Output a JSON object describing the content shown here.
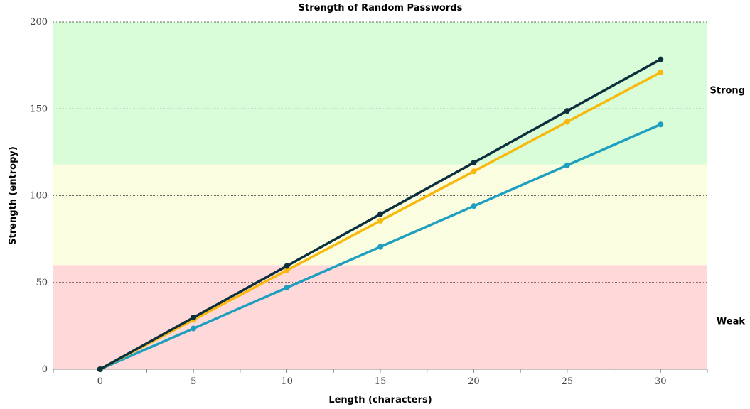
{
  "chart_data": {
    "type": "line",
    "title": "Strength of Random Passwords",
    "xlabel": "Length (characters)",
    "ylabel": "Strength (entropy)",
    "xlim": [
      -2.5,
      32.5
    ],
    "ylim": [
      0,
      200
    ],
    "x_ticks": [
      0,
      5,
      10,
      15,
      20,
      25,
      30
    ],
    "y_ticks": [
      0,
      50,
      100,
      150,
      200
    ],
    "grid": "horizontal-dotted",
    "bands": [
      {
        "from": 0,
        "to": 60,
        "color": "#ffd9d9"
      },
      {
        "from": 60,
        "to": 118,
        "color": "#fafde0"
      },
      {
        "from": 118,
        "to": 200,
        "color": "#d9fdd9"
      }
    ],
    "zone_labels": [
      {
        "label": "Strong",
        "y": 161
      },
      {
        "label": "Weak",
        "y": 28
      }
    ],
    "x": [
      0,
      5,
      10,
      15,
      20,
      25,
      30
    ],
    "series": [
      {
        "color": "#1f9fbf",
        "values": [
          0,
          23.5,
          47,
          70.5,
          94,
          117.5,
          141
        ]
      },
      {
        "color": "#f7b90c",
        "values": [
          0,
          28.5,
          57,
          85.5,
          114,
          142.5,
          171
        ]
      },
      {
        "color": "#0b2f3d",
        "values": [
          0,
          29.8,
          59.5,
          89.3,
          119,
          148.8,
          178.5
        ]
      }
    ]
  }
}
